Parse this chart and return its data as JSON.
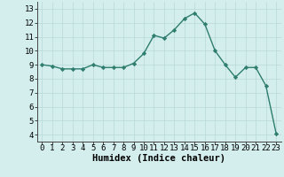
{
  "x": [
    0,
    1,
    2,
    3,
    4,
    5,
    6,
    7,
    8,
    9,
    10,
    11,
    12,
    13,
    14,
    15,
    16,
    17,
    18,
    19,
    20,
    21,
    22,
    23
  ],
  "y": [
    9.0,
    8.9,
    8.7,
    8.7,
    8.7,
    9.0,
    8.8,
    8.8,
    8.8,
    9.1,
    9.8,
    11.1,
    10.9,
    11.5,
    12.3,
    12.7,
    11.9,
    10.0,
    9.0,
    8.1,
    8.8,
    8.8,
    7.5,
    4.1
  ],
  "line_color": "#2e7d6e",
  "marker": "D",
  "marker_size": 2.2,
  "bg_color": "#d4eeee",
  "grid_color": "#b8d8d8",
  "xlabel": "Humidex (Indice chaleur)",
  "xlabel_fontsize": 7.5,
  "ylim": [
    3.5,
    13.5
  ],
  "xlim": [
    -0.5,
    23.5
  ],
  "yticks": [
    4,
    5,
    6,
    7,
    8,
    9,
    10,
    11,
    12,
    13
  ],
  "xticks": [
    0,
    1,
    2,
    3,
    4,
    5,
    6,
    7,
    8,
    9,
    10,
    11,
    12,
    13,
    14,
    15,
    16,
    17,
    18,
    19,
    20,
    21,
    22,
    23
  ],
  "tick_fontsize": 6.5,
  "line_width": 1.0
}
